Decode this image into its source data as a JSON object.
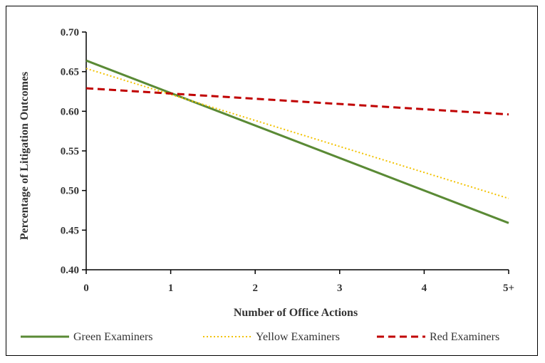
{
  "chart_data": {
    "type": "line",
    "title": "",
    "xlabel": "Number of Office Actions",
    "ylabel": "Percentage of Litigation Outcomes",
    "categories": [
      "0",
      "1",
      "2",
      "3",
      "4",
      "5+"
    ],
    "ylim": [
      0.4,
      0.7
    ],
    "yticks": [
      "0.40",
      "0.45",
      "0.50",
      "0.55",
      "0.60",
      "0.65",
      "0.70"
    ],
    "grid": false,
    "legend_position": "bottom",
    "series": [
      {
        "name": "Green Examiners",
        "start": 0.664,
        "end": 0.459,
        "color": "#5a8a35",
        "dash": "solid"
      },
      {
        "name": "Yellow Examiners",
        "start": 0.654,
        "end": 0.49,
        "color": "#f2c200",
        "dash": "dotted"
      },
      {
        "name": "Red Examiners",
        "start": 0.629,
        "end": 0.596,
        "color": "#c00000",
        "dash": "dashed"
      }
    ]
  }
}
